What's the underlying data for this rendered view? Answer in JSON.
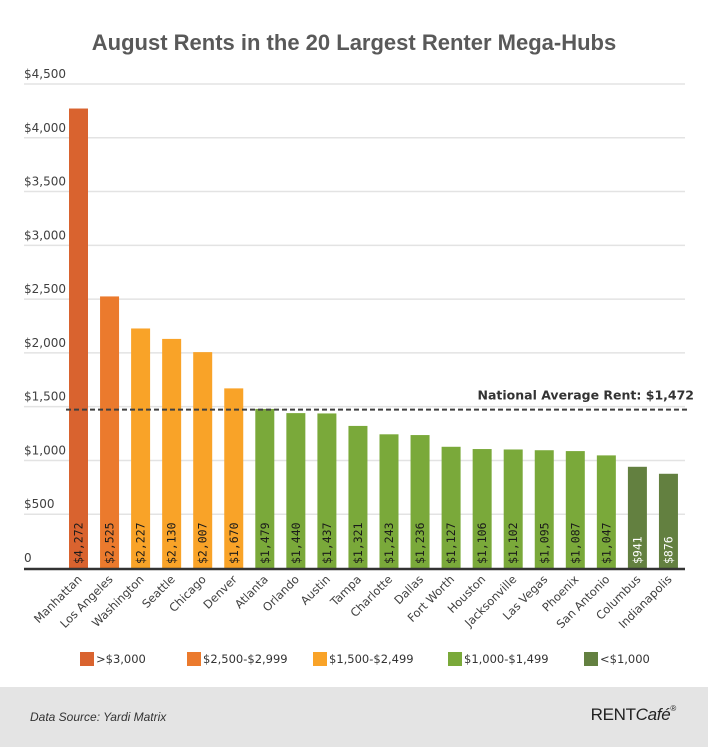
{
  "chart_data": {
    "type": "bar",
    "title": "August Rents in the 20 Largest Renter Mega-Hubs",
    "xlabel": "",
    "ylabel": "",
    "ylim": [
      0,
      4500
    ],
    "yticks": [
      0,
      500,
      1000,
      1500,
      2000,
      2500,
      3000,
      3500,
      4000,
      4500
    ],
    "ytick_labels": [
      "0",
      "$500",
      "$1,000",
      "$1,500",
      "$2,000",
      "$2,500",
      "$3,000",
      "$3,500",
      "$4,000",
      "$4,500"
    ],
    "grid": true,
    "categories": [
      "Manhattan",
      "Los Angeles",
      "Washington",
      "Seattle",
      "Chicago",
      "Denver",
      "Atlanta",
      "Orlando",
      "Austin",
      "Tampa",
      "Charlotte",
      "Dallas",
      "Fort Worth",
      "Houston",
      "Jacksonville",
      "Las Vegas",
      "Phoenix",
      "San Antonio",
      "Columbus",
      "Indianapolis"
    ],
    "values": [
      4272,
      2525,
      2227,
      2130,
      2007,
      1670,
      1479,
      1440,
      1437,
      1321,
      1243,
      1236,
      1127,
      1106,
      1102,
      1095,
      1087,
      1047,
      941,
      876
    ],
    "value_labels": [
      "$4,272",
      "$2,525",
      "$2,227",
      "$2,130",
      "$2,007",
      "$1,670",
      "$1,479",
      "$1,440",
      "$1,437",
      "$1,321",
      "$1,243",
      "$1,236",
      "$1,127",
      "$1,106",
      "$1,102",
      "$1,095",
      "$1,087",
      "$1,047",
      "$941",
      "$876"
    ],
    "bar_groups": [
      0,
      1,
      2,
      2,
      2,
      2,
      3,
      3,
      3,
      3,
      3,
      3,
      3,
      3,
      3,
      3,
      3,
      3,
      4,
      4
    ],
    "legend_position": "bottom",
    "legend": [
      {
        "label": ">$3,000",
        "color": "#d9632f"
      },
      {
        "label": "$2,500-$2,999",
        "color": "#eb7a2d"
      },
      {
        "label": "$1,500-$2,499",
        "color": "#f9a328"
      },
      {
        "label": "$1,000-$1,499",
        "color": "#7aa93a"
      },
      {
        "label": "<$1,000",
        "color": "#638040"
      }
    ],
    "reference_line": {
      "value": 1472,
      "label": "National Average Rent: $1,472",
      "style": "dashed"
    }
  },
  "footer": {
    "source": "Data Source: Yardi Matrix",
    "logo_main": "RENT",
    "logo_italic": "Café",
    "logo_mark": "®"
  }
}
